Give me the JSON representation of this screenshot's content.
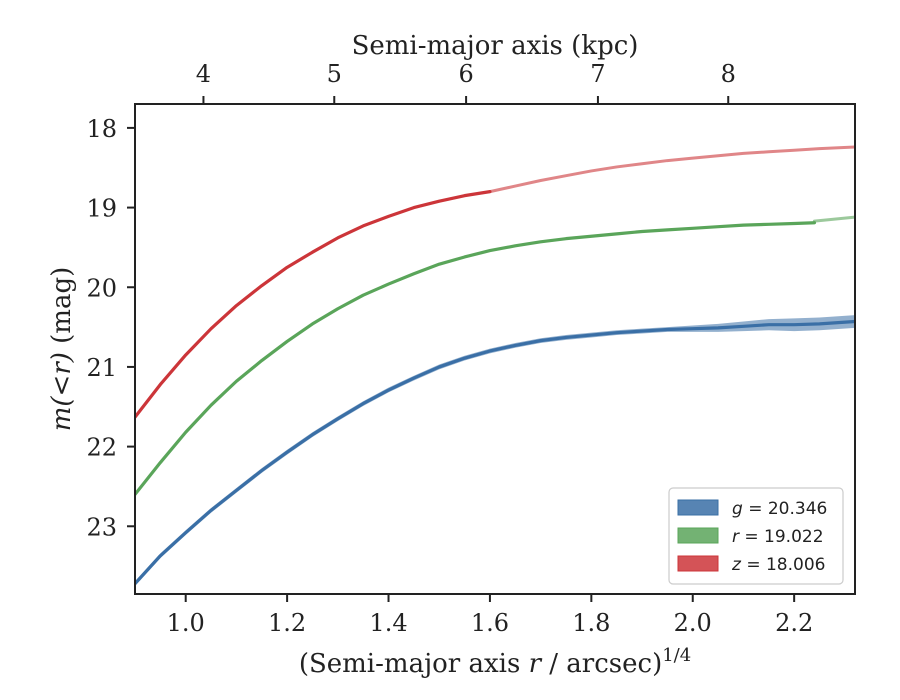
{
  "chart_data": {
    "type": "line",
    "xlabel": "(Semi-major axis r / arcsec)",
    "xlabel_superscript": "1/4",
    "ylabel": "m(<r) (mag)",
    "top_xlabel": "Semi-major axis (kpc)",
    "xlim": [
      0.9,
      2.32
    ],
    "ylim": [
      23.85,
      17.7
    ],
    "y_inverted": true,
    "x_ticks": [
      1.0,
      1.2,
      1.4,
      1.6,
      1.8,
      2.0,
      2.2
    ],
    "x_tick_labels": [
      "1.0",
      "1.2",
      "1.4",
      "1.6",
      "1.8",
      "2.0",
      "2.2"
    ],
    "y_ticks": [
      18,
      19,
      20,
      21,
      22,
      23
    ],
    "y_tick_labels": [
      "18",
      "19",
      "20",
      "21",
      "22",
      "23"
    ],
    "top_ticks": [
      {
        "x": 1.035,
        "label": "4"
      },
      {
        "x": 1.293,
        "label": "5"
      },
      {
        "x": 1.553,
        "label": "6"
      },
      {
        "x": 1.813,
        "label": "7"
      },
      {
        "x": 2.07,
        "label": "8"
      }
    ],
    "grid": false,
    "legend_position": "bottom-right",
    "series": [
      {
        "name": "g = 20.346",
        "legend_var": "g",
        "legend_value": "20.346",
        "color": "#3a6fa6",
        "x": [
          0.9,
          0.95,
          1.0,
          1.05,
          1.1,
          1.15,
          1.2,
          1.25,
          1.3,
          1.35,
          1.4,
          1.45,
          1.5,
          1.55,
          1.6,
          1.65,
          1.7,
          1.75,
          1.8,
          1.85,
          1.9,
          1.95,
          2.0,
          2.05,
          2.1,
          2.15,
          2.2,
          2.25,
          2.32
        ],
        "y": [
          23.72,
          23.37,
          23.08,
          22.8,
          22.55,
          22.3,
          22.07,
          21.85,
          21.65,
          21.46,
          21.29,
          21.14,
          21.0,
          20.89,
          20.8,
          20.73,
          20.67,
          20.63,
          20.6,
          20.57,
          20.55,
          20.53,
          20.52,
          20.51,
          20.49,
          20.47,
          20.47,
          20.46,
          20.43
        ],
        "band_width": [
          0.03,
          0.03,
          0.03,
          0.03,
          0.03,
          0.03,
          0.03,
          0.03,
          0.03,
          0.03,
          0.03,
          0.03,
          0.03,
          0.03,
          0.03,
          0.03,
          0.03,
          0.03,
          0.03,
          0.03,
          0.03,
          0.03,
          0.04,
          0.05,
          0.06,
          0.07,
          0.08,
          0.08,
          0.08
        ]
      },
      {
        "name": "r = 19.022",
        "legend_var": "r",
        "legend_value": "19.022",
        "color": "#5aa55a",
        "x": [
          0.9,
          0.95,
          1.0,
          1.05,
          1.1,
          1.15,
          1.2,
          1.25,
          1.3,
          1.35,
          1.4,
          1.45,
          1.5,
          1.55,
          1.6,
          1.65,
          1.7,
          1.75,
          1.8,
          1.85,
          1.9,
          1.95,
          2.0,
          2.05,
          2.1,
          2.15,
          2.2,
          2.24
        ],
        "y": [
          22.6,
          22.2,
          21.82,
          21.48,
          21.18,
          20.92,
          20.68,
          20.46,
          20.27,
          20.1,
          19.96,
          19.83,
          19.71,
          19.62,
          19.54,
          19.48,
          19.43,
          19.39,
          19.36,
          19.33,
          19.3,
          19.28,
          19.26,
          19.24,
          19.22,
          19.21,
          19.2,
          19.19
        ],
        "faded_x": [
          2.24,
          2.32
        ],
        "faded_y": [
          19.17,
          19.12
        ]
      },
      {
        "name": "z = 18.006",
        "legend_var": "z",
        "legend_value": "18.006",
        "color": "#cc3539",
        "x": [
          0.9,
          0.95,
          1.0,
          1.05,
          1.1,
          1.15,
          1.2,
          1.25,
          1.3,
          1.35,
          1.4,
          1.45,
          1.5,
          1.55,
          1.6
        ],
        "y": [
          21.63,
          21.22,
          20.85,
          20.52,
          20.23,
          19.98,
          19.75,
          19.56,
          19.38,
          19.23,
          19.11,
          19.0,
          18.92,
          18.85,
          18.8
        ],
        "faded_x": [
          1.6,
          1.65,
          1.7,
          1.75,
          1.8,
          1.85,
          1.9,
          1.95,
          2.0,
          2.05,
          2.1,
          2.15,
          2.2,
          2.25,
          2.32
        ],
        "faded_y": [
          18.8,
          18.73,
          18.66,
          18.6,
          18.54,
          18.49,
          18.45,
          18.41,
          18.38,
          18.35,
          18.32,
          18.3,
          18.28,
          18.26,
          18.24
        ]
      }
    ]
  }
}
